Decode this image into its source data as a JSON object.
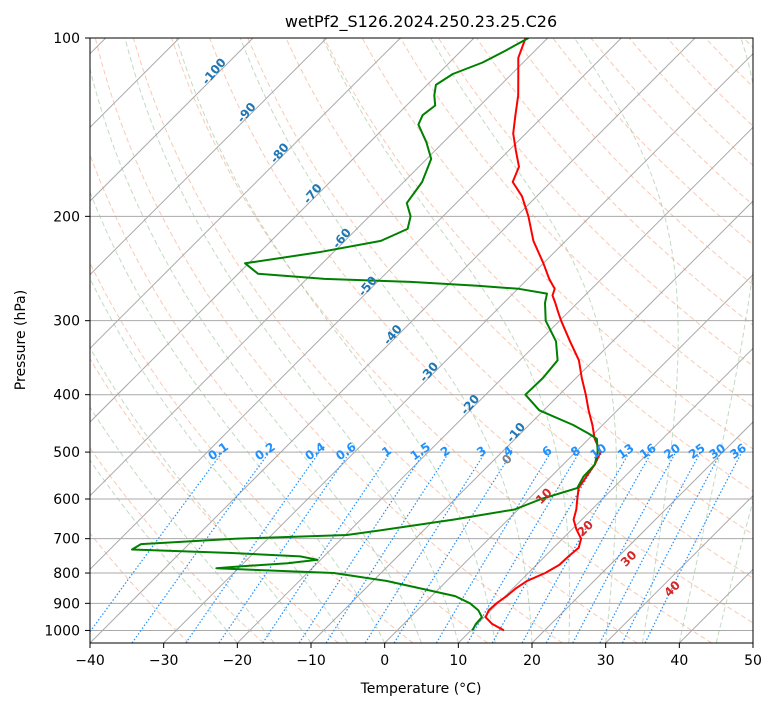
{
  "chart_data": {
    "type": "line",
    "title": "wetPf2_S126.2024.250.23.25.C26",
    "xlabel": "Temperature (°C)",
    "ylabel": "Pressure (hPa)",
    "xlim": [
      -40,
      50
    ],
    "ylim": [
      1050,
      100
    ],
    "y_scale": "log",
    "x_ticks": [
      -40,
      -30,
      -20,
      -10,
      0,
      10,
      20,
      30,
      40,
      50
    ],
    "y_ticks": [
      1000,
      900,
      800,
      700,
      600,
      500,
      400,
      300,
      200,
      100
    ],
    "grid": true,
    "series": [
      {
        "color": "#ff0000",
        "points": [
          [
            1000,
            14.5
          ],
          [
            975,
            12.0
          ],
          [
            950,
            10.2
          ],
          [
            925,
            9.7
          ],
          [
            900,
            9.8
          ],
          [
            875,
            10.2
          ],
          [
            850,
            10.4
          ],
          [
            825,
            10.9
          ],
          [
            800,
            12.3
          ],
          [
            775,
            13.1
          ],
          [
            750,
            13.2
          ],
          [
            725,
            13.4
          ],
          [
            700,
            12.5
          ],
          [
            675,
            10.6
          ],
          [
            650,
            8.9
          ],
          [
            625,
            7.9
          ],
          [
            600,
            6.6
          ],
          [
            575,
            5.3
          ],
          [
            550,
            4.8
          ],
          [
            525,
            4.3
          ],
          [
            500,
            3.4
          ],
          [
            475,
            0.8
          ],
          [
            450,
            -1.4
          ],
          [
            425,
            -3.9
          ],
          [
            400,
            -6.4
          ],
          [
            375,
            -9.2
          ],
          [
            350,
            -12.0
          ],
          [
            325,
            -15.8
          ],
          [
            300,
            -19.8
          ],
          [
            290,
            -21.4
          ],
          [
            280,
            -23.0
          ],
          [
            272,
            -24.4
          ],
          [
            265,
            -25.0
          ],
          [
            255,
            -27.1
          ],
          [
            240,
            -30.0
          ],
          [
            220,
            -34.4
          ],
          [
            200,
            -38.4
          ],
          [
            185,
            -42.0
          ],
          [
            175,
            -45.2
          ],
          [
            165,
            -46.4
          ],
          [
            155,
            -49.0
          ],
          [
            145,
            -51.7
          ],
          [
            135,
            -53.9
          ],
          [
            125,
            -56.2
          ],
          [
            115,
            -59.1
          ],
          [
            108,
            -61.3
          ],
          [
            100,
            -63.0
          ]
        ]
      },
      {
        "color": "#008000",
        "points": [
          [
            1000,
            10.2
          ],
          [
            975,
            9.8
          ],
          [
            950,
            9.7
          ],
          [
            925,
            8.3
          ],
          [
            900,
            6.2
          ],
          [
            875,
            3.2
          ],
          [
            850,
            -2.4
          ],
          [
            825,
            -8.2
          ],
          [
            800,
            -16.4
          ],
          [
            790,
            -28.0
          ],
          [
            785,
            -33.0
          ],
          [
            780,
            -30.2
          ],
          [
            770,
            -24.0
          ],
          [
            760,
            -20.4
          ],
          [
            750,
            -23.2
          ],
          [
            740,
            -33.0
          ],
          [
            730,
            -47.0
          ],
          [
            715,
            -46.5
          ],
          [
            700,
            -34.5
          ],
          [
            690,
            -19.8
          ],
          [
            675,
            -15.0
          ],
          [
            650,
            -7.4
          ],
          [
            625,
            -0.5
          ],
          [
            600,
            1.7
          ],
          [
            575,
            5.1
          ],
          [
            550,
            4.4
          ],
          [
            525,
            4.3
          ],
          [
            500,
            3.0
          ],
          [
            475,
            1.1
          ],
          [
            465,
            -0.8
          ],
          [
            450,
            -4.0
          ],
          [
            425,
            -10.6
          ],
          [
            400,
            -14.6
          ],
          [
            375,
            -14.5
          ],
          [
            350,
            -14.9
          ],
          [
            325,
            -17.7
          ],
          [
            300,
            -21.9
          ],
          [
            280,
            -24.4
          ],
          [
            270,
            -25.4
          ],
          [
            265,
            -29.9
          ],
          [
            262,
            -35.9
          ],
          [
            258,
            -45.5
          ],
          [
            255,
            -57.6
          ],
          [
            250,
            -67.3
          ],
          [
            240,
            -70.5
          ],
          [
            230,
            -62.0
          ],
          [
            220,
            -55.1
          ],
          [
            210,
            -53.1
          ],
          [
            200,
            -54.4
          ],
          [
            190,
            -56.7
          ],
          [
            175,
            -57.5
          ],
          [
            160,
            -59.4
          ],
          [
            150,
            -62.3
          ],
          [
            140,
            -65.8
          ],
          [
            135,
            -66.5
          ],
          [
            130,
            -66.1
          ],
          [
            125,
            -67.6
          ],
          [
            120,
            -68.8
          ],
          [
            115,
            -68.0
          ],
          [
            110,
            -65.5
          ],
          [
            105,
            -64.0
          ],
          [
            100,
            -62.6
          ]
        ]
      }
    ],
    "dry_adiabat_labels": [
      "-100",
      "-90",
      "-80",
      "-70",
      "-60",
      "-50",
      "-40",
      "-30",
      "-20",
      "-10"
    ],
    "moist_adiabat_labels": [
      "0",
      "10",
      "20",
      "30",
      "40"
    ],
    "mixing_ratio_labels": [
      "0.1",
      "0.2",
      "0.4",
      "0.6",
      "1",
      "1.5",
      "2",
      "3",
      "4",
      "6",
      "8",
      "10",
      "13",
      "16",
      "20",
      "25",
      "30",
      "36"
    ],
    "colors": {
      "isotherm": "#a9a9a9",
      "isobar": "#a9a9a9",
      "dry_adiabat": "#f4a582",
      "moist_adiabat": "#8fbc8f",
      "mixing_ratio": "#1e90ff",
      "dry_label": "#1f77b4",
      "moist_zero_label": "#808080",
      "moist_label": "#d62728"
    }
  }
}
